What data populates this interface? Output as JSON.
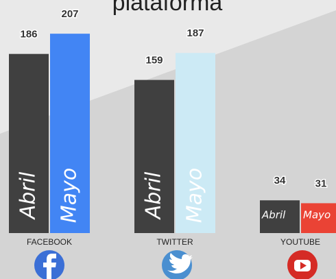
{
  "chart_data": {
    "type": "bar",
    "title": "plataforma",
    "categories": [
      "FACEBOOK",
      "TWITTER",
      "YOUTUBE"
    ],
    "series": [
      {
        "name": "Abril",
        "color": "#404040",
        "values": [
          186,
          159,
          34
        ]
      },
      {
        "name": "Mayo",
        "colors": [
          "#4285f4",
          "#cceaf5",
          "#ea4335"
        ],
        "values": [
          207,
          187,
          31
        ]
      }
    ]
  }
}
